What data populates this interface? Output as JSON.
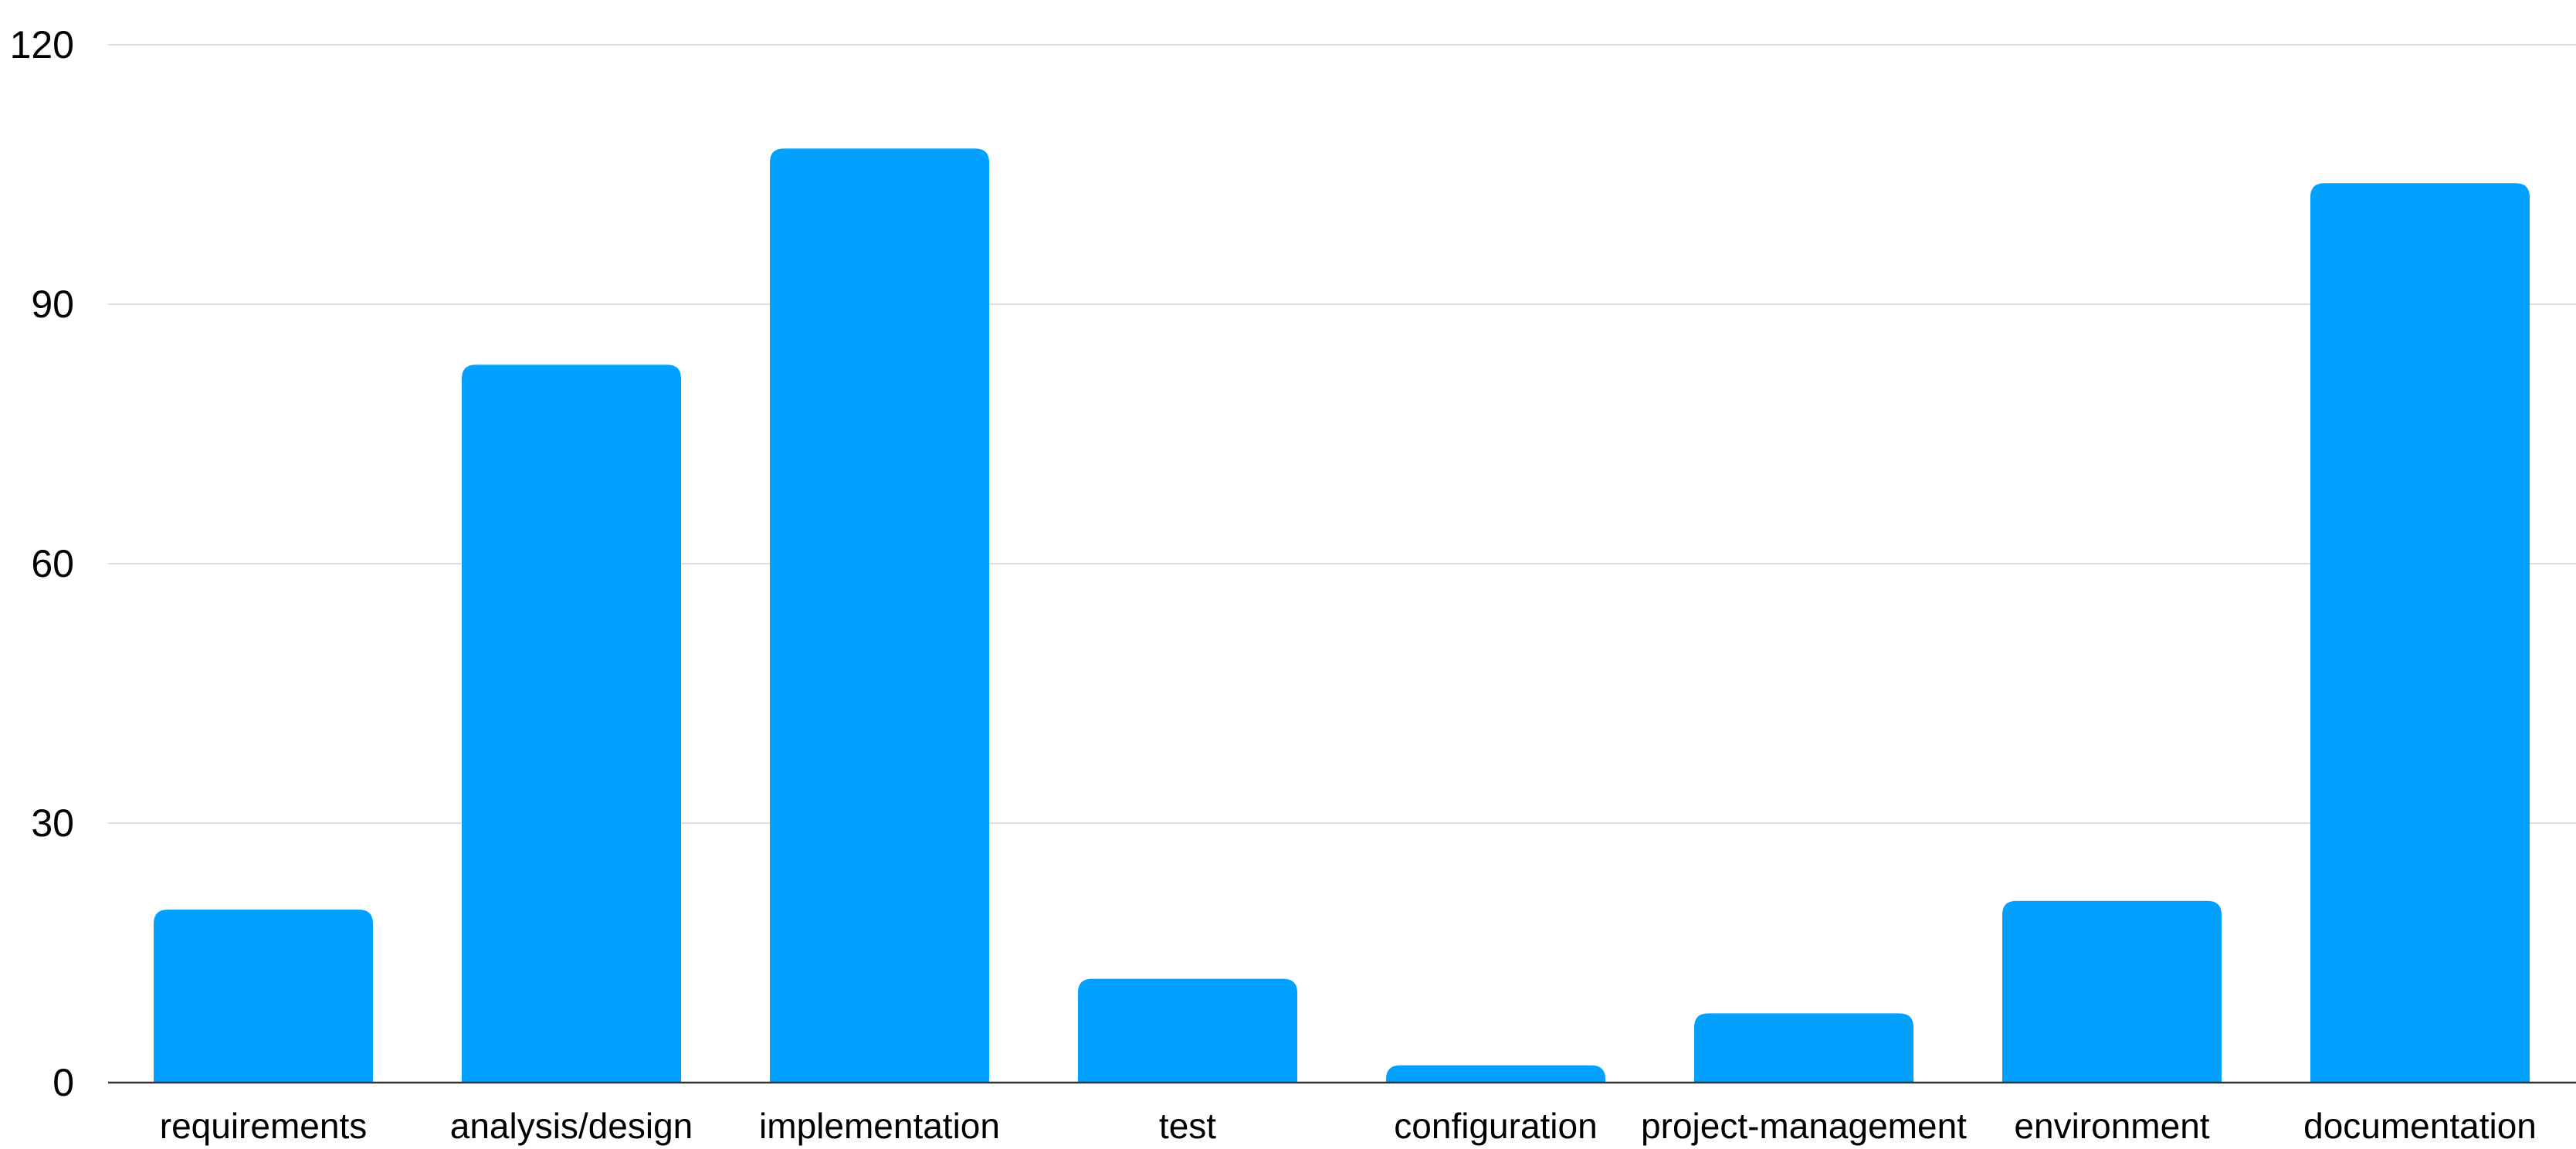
{
  "chart_data": {
    "type": "bar",
    "categories": [
      "requirements",
      "analysis/design",
      "implementation",
      "test",
      "configuration",
      "project-management",
      "environment",
      "documentation"
    ],
    "values": [
      20,
      83,
      108,
      12,
      2,
      8,
      21,
      104
    ],
    "title": "",
    "xlabel": "",
    "ylabel": "",
    "ylim": [
      0,
      120
    ],
    "yticks": [
      "0",
      "30",
      "60",
      "90",
      "120"
    ],
    "grid": true,
    "legend": "none",
    "colors": {
      "bar": "#03A1FF",
      "grid": "#DDDDDD",
      "axis": "#333333"
    }
  }
}
